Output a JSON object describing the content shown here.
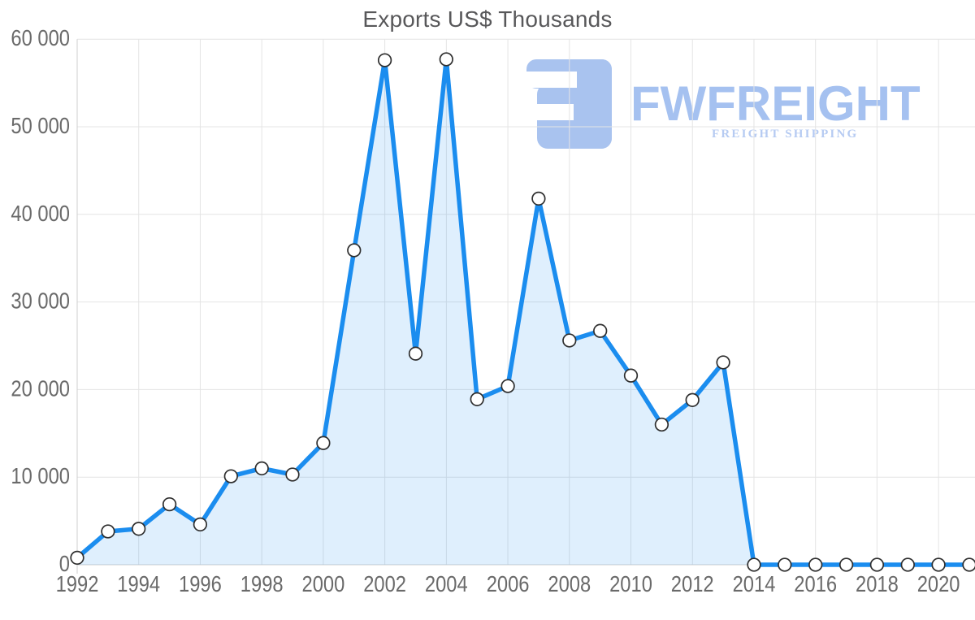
{
  "title": "Exports US$ Thousands",
  "watermark": {
    "brand": "FWFREIGHT",
    "tagline": "FREIGHT SHIPPING",
    "icon_color": "#a9c3ef"
  },
  "chart_data": {
    "type": "area",
    "title": "Exports US$ Thousands",
    "x": [
      1992,
      1993,
      1994,
      1995,
      1996,
      1997,
      1998,
      1999,
      2000,
      2001,
      2002,
      2003,
      2004,
      2005,
      2006,
      2007,
      2008,
      2009,
      2010,
      2011,
      2012,
      2013,
      2014,
      2015,
      2016,
      2017,
      2018,
      2019,
      2020,
      2021
    ],
    "values": [
      800,
      3800,
      4100,
      6900,
      4600,
      10100,
      11000,
      10300,
      13900,
      35900,
      57600,
      24100,
      57700,
      18900,
      20400,
      41800,
      25600,
      26700,
      21600,
      16000,
      18800,
      23100,
      0,
      0,
      0,
      0,
      0,
      0,
      0,
      0
    ],
    "ylim": [
      0,
      60000
    ],
    "ytick_step": 10000,
    "ytick_labels": [
      "0",
      "10 000",
      "20 000",
      "30 000",
      "40 000",
      "50 000",
      "60 000"
    ],
    "xtick_labels": [
      "1992",
      "1994",
      "1996",
      "1998",
      "2000",
      "2002",
      "2004",
      "2006",
      "2008",
      "2010",
      "2012",
      "2014",
      "2016",
      "2018",
      "2020"
    ],
    "grid": true,
    "legend": "none",
    "colors": {
      "line": "#1b8def",
      "fill": "rgba(27,141,239,0.14)",
      "marker_fill": "#ffffff",
      "marker_stroke": "#2f2f2f",
      "grid": "#e4e4e4",
      "axis": "#cfcfcf",
      "label": "#6a6a6a",
      "title": "#58585a"
    }
  }
}
